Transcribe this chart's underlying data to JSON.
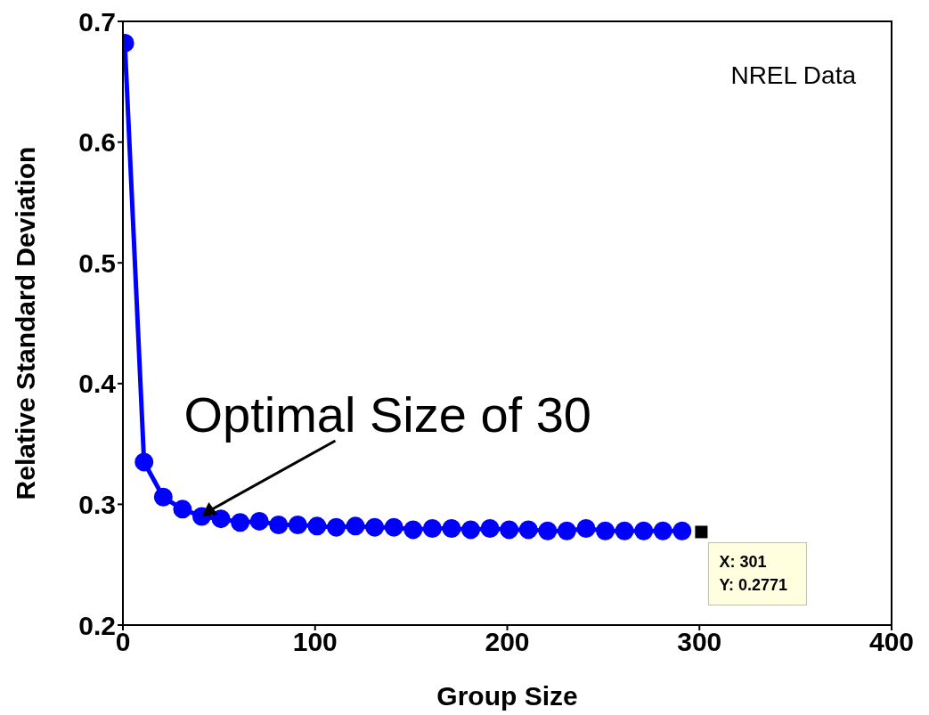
{
  "chart_data": {
    "type": "line",
    "xlabel": "Group Size",
    "ylabel": "Relative Standard Deviation",
    "xlim": [
      0,
      400
    ],
    "xticks": [
      0,
      100,
      200,
      300,
      400
    ],
    "ylim": [
      0.2,
      0.7
    ],
    "yticks": [
      0.2,
      0.3,
      0.4,
      0.5,
      0.6,
      0.7
    ],
    "marker": "circle",
    "line_style": "solid",
    "series": [
      {
        "color": "#0000ff",
        "x": [
          1,
          11,
          21,
          31,
          41,
          51,
          61,
          71,
          81,
          91,
          101,
          111,
          121,
          131,
          141,
          151,
          161,
          171,
          181,
          191,
          201,
          211,
          221,
          231,
          241,
          251,
          261,
          271,
          281,
          291
        ],
        "values": [
          0.682,
          0.335,
          0.306,
          0.296,
          0.29,
          0.288,
          0.285,
          0.286,
          0.283,
          0.283,
          0.282,
          0.281,
          0.282,
          0.281,
          0.281,
          0.279,
          0.28,
          0.28,
          0.279,
          0.28,
          0.279,
          0.279,
          0.278,
          0.278,
          0.28,
          0.278,
          0.278,
          0.278,
          0.278,
          0.278
        ]
      },
      {
        "type": "scatter",
        "marker": "square",
        "color": "#000000",
        "x": [
          301
        ],
        "values": [
          0.2771
        ]
      }
    ],
    "annotations": [
      {
        "text": "Optimal Size of 30",
        "x": 41,
        "y": 0.29
      },
      "NREL Data",
      {
        "text": "X: 301\nY: 0.2771",
        "x": 301,
        "y": 0.2771
      }
    ]
  }
}
